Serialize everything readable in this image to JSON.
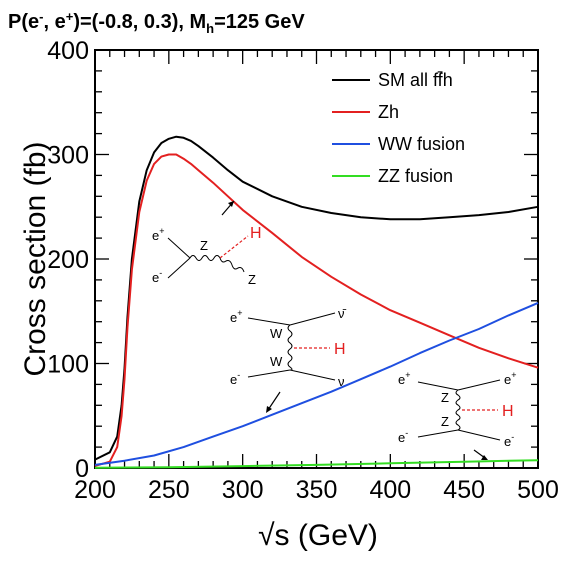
{
  "chart_data": {
    "type": "line",
    "title": {
      "prefix": "P(e",
      "sup1": "-",
      "mid1": ", e",
      "sup2": "+",
      "mid2": ")=(-0.8, 0.3), M",
      "sub": "h",
      "suffix": "=125 GeV"
    },
    "xlabel": "√s (GeV)",
    "ylabel": "Cross section (fb)",
    "xlim": [
      200,
      500
    ],
    "ylim": [
      0,
      400
    ],
    "xticks": [
      "200",
      "250",
      "300",
      "350",
      "400",
      "450",
      "500"
    ],
    "yticks": [
      "0",
      "100",
      "200",
      "300",
      "400"
    ],
    "legend_position": "top-right",
    "series": [
      {
        "name": "SM all ff̄h",
        "color": "#000000",
        "x": [
          200,
          210,
          215,
          218,
          220,
          222,
          225,
          230,
          235,
          240,
          245,
          250,
          255,
          260,
          265,
          270,
          280,
          290,
          300,
          320,
          340,
          360,
          380,
          400,
          420,
          440,
          460,
          480,
          500
        ],
        "y": [
          8,
          15,
          30,
          60,
          95,
          145,
          200,
          255,
          285,
          302,
          311,
          315,
          317,
          316,
          313,
          308,
          297,
          285,
          274,
          260,
          250,
          244,
          240,
          238,
          238,
          240,
          242,
          245,
          250
        ]
      },
      {
        "name": "Zh",
        "color": "#e32020",
        "x": [
          200,
          210,
          215,
          218,
          220,
          222,
          225,
          230,
          235,
          240,
          245,
          250,
          255,
          260,
          265,
          270,
          280,
          290,
          300,
          320,
          340,
          360,
          380,
          400,
          420,
          440,
          460,
          480,
          500
        ],
        "y": [
          2,
          6,
          20,
          50,
          85,
          135,
          190,
          245,
          275,
          291,
          298,
          300,
          300,
          296,
          291,
          285,
          273,
          260,
          247,
          225,
          202,
          183,
          166,
          151,
          139,
          127,
          115,
          105,
          96
        ]
      },
      {
        "name": "WW fusion",
        "color": "#1f4fe0",
        "x": [
          200,
          220,
          240,
          260,
          280,
          300,
          320,
          340,
          360,
          380,
          400,
          420,
          440,
          460,
          480,
          500
        ],
        "y": [
          3,
          7,
          12,
          20,
          30,
          40,
          51,
          62,
          73,
          85,
          97,
          110,
          122,
          133,
          146,
          158
        ]
      },
      {
        "name": "ZZ fusion",
        "color": "#33dd22",
        "x": [
          200,
          250,
          300,
          350,
          400,
          450,
          500
        ],
        "y": [
          0.2,
          0.8,
          1.8,
          3,
          4.5,
          6,
          7.5
        ]
      }
    ],
    "diagrams": {
      "zh": {
        "e_plus": "e",
        "e_minus": "e",
        "plus": "+",
        "minus": "-",
        "z_prop": "Z",
        "z_out": "Z",
        "h": "H"
      },
      "ww": {
        "e_plus": "e",
        "e_minus": "e",
        "plus": "+",
        "minus": "-",
        "w1": "W",
        "w2": "W",
        "nubar": "ν̄",
        "nu": "ν",
        "h": "H"
      },
      "zz": {
        "e_plus_in": "e",
        "e_minus_in": "e",
        "e_plus_out": "e",
        "e_minus_out": "e",
        "plus": "+",
        "minus": "-",
        "z1": "Z",
        "z2": "Z",
        "h": "H"
      }
    }
  }
}
